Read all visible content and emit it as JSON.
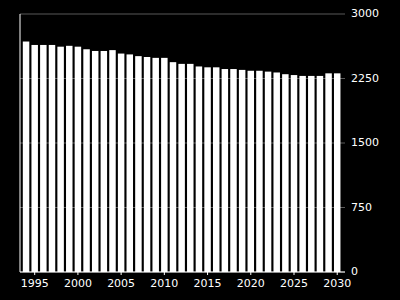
{
  "chart_data": {
    "type": "bar",
    "x": [
      1994,
      1995,
      1996,
      1997,
      1998,
      1999,
      2000,
      2001,
      2002,
      2003,
      2004,
      2005,
      2006,
      2007,
      2008,
      2009,
      2010,
      2011,
      2012,
      2013,
      2014,
      2015,
      2016,
      2017,
      2018,
      2019,
      2020,
      2021,
      2022,
      2023,
      2024,
      2025,
      2026,
      2027,
      2028,
      2029,
      2030
    ],
    "values": [
      2680,
      2640,
      2640,
      2640,
      2620,
      2630,
      2620,
      2590,
      2570,
      2570,
      2580,
      2540,
      2530,
      2510,
      2500,
      2490,
      2490,
      2440,
      2420,
      2420,
      2390,
      2380,
      2380,
      2360,
      2360,
      2350,
      2340,
      2340,
      2330,
      2320,
      2300,
      2290,
      2280,
      2280,
      2280,
      2310,
      2310
    ],
    "color": "#ffffff",
    "xlim": [
      1993.3,
      2030.9
    ],
    "xticks": [
      1995,
      2000,
      2005,
      2010,
      2015,
      2020,
      2025,
      2030
    ],
    "ylim": [
      0,
      3000
    ],
    "yticks": [
      0,
      750,
      1500,
      2250,
      3000
    ],
    "grid": true
  }
}
